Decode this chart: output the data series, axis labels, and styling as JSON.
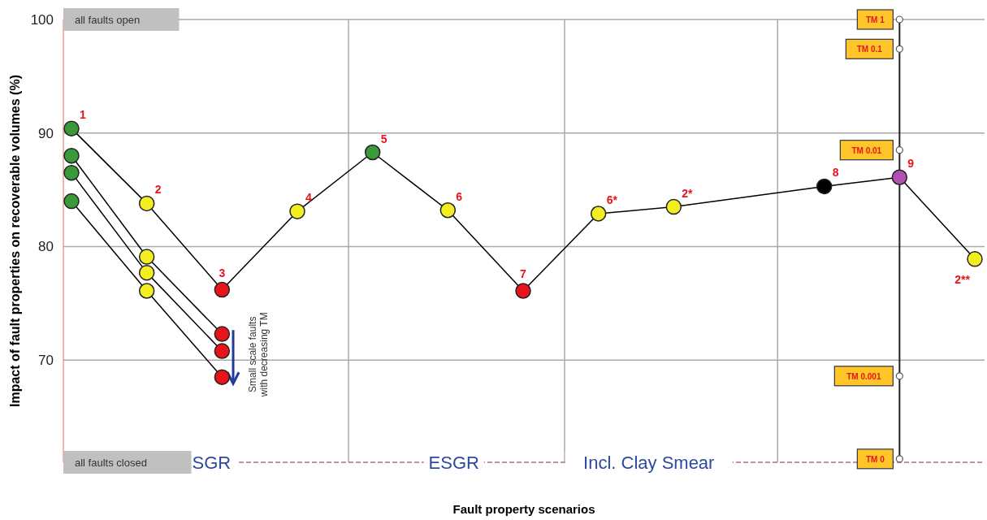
{
  "chart_data": {
    "type": "line",
    "xlabel": "Fault property scenarios",
    "ylabel": "Impact of fault  properties on recoverable volumes (%)",
    "categories": [
      null,
      null,
      null,
      null,
      null,
      null,
      null,
      null,
      null,
      null,
      null,
      null,
      null
    ],
    "ylim": [
      61,
      100
    ],
    "yticks": [
      70,
      80,
      90,
      100
    ],
    "grid": true,
    "marker": "circle",
    "line_style": "solid",
    "series": [
      {
        "color": "#000000",
        "values": [
          90.4,
          83.8,
          76.2,
          83.1,
          88.3,
          83.2,
          76.1,
          82.9,
          83.5,
          null,
          85.3,
          86.1,
          78.9
        ],
        "colors": [
          "#3a9a3a",
          "#f2ee22",
          "#e8141c",
          "#f2ee22",
          "#3a9a3a",
          "#f2ee22",
          "#e8141c",
          "#f2ee22",
          "#f2ee22",
          null,
          "#000000",
          "#b050b0",
          "#f2ee22"
        ]
      },
      {
        "color": "#000000",
        "values": [
          88.0,
          79.1,
          72.3,
          null,
          null,
          null,
          null,
          null,
          null,
          null,
          null,
          null,
          null
        ],
        "colors": [
          "#3a9a3a",
          "#f2ee22",
          "#e8141c",
          null,
          null,
          null,
          null,
          null,
          null,
          null,
          null,
          null,
          null
        ]
      },
      {
        "color": "#000000",
        "values": [
          86.5,
          77.7,
          70.8,
          null,
          null,
          null,
          null,
          null,
          null,
          null,
          null,
          null,
          null
        ],
        "colors": [
          "#3a9a3a",
          "#f2ee22",
          "#e8141c",
          null,
          null,
          null,
          null,
          null,
          null,
          null,
          null,
          null,
          null
        ]
      },
      {
        "color": "#000000",
        "values": [
          84.0,
          76.1,
          68.5,
          null,
          null,
          null,
          null,
          null,
          null,
          null,
          null,
          null,
          null
        ],
        "colors": [
          "#3a9a3a",
          "#f2ee22",
          "#e8141c",
          null,
          null,
          null,
          null,
          null,
          null,
          null,
          null,
          null,
          null
        ]
      }
    ],
    "ref_lines": [
      {
        "axis": "y",
        "value": 61,
        "color": "#b07070",
        "line_style": "dashed"
      }
    ],
    "annotations": [
      "all faults open",
      "all faults closed",
      "Small scale faults with decreasing TM",
      "SGR",
      "ESGR",
      "Incl. Clay Smear",
      "1",
      "2",
      "3",
      "4",
      "5",
      "6",
      "7",
      "6*",
      "2*",
      "8",
      "9",
      "2**",
      "TM 1",
      "TM 0.1",
      "TM 0.01",
      "TM 0.001",
      "TM 0"
    ]
  }
}
